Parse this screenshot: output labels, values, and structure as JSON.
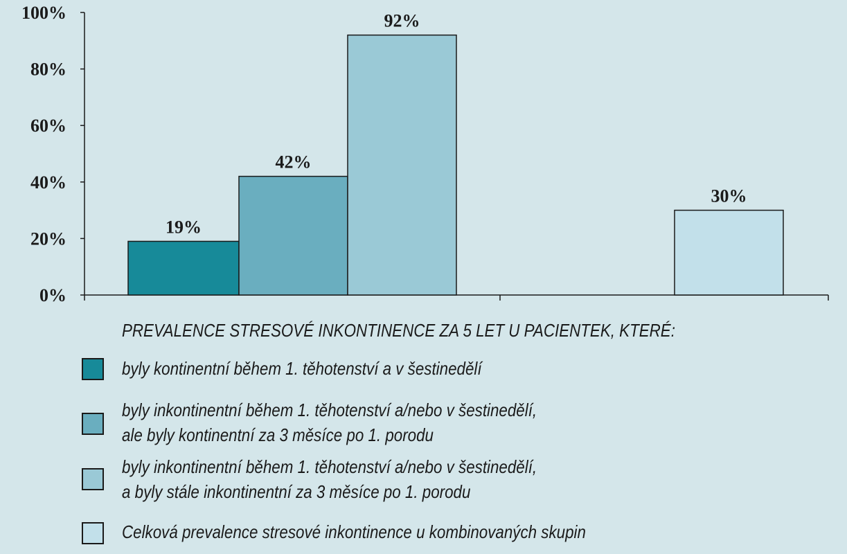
{
  "chart_data": {
    "type": "bar",
    "title": "",
    "xlabel": "",
    "ylabel": "",
    "ylim": [
      0,
      100
    ],
    "yticks": [
      "0%",
      "20%",
      "40%",
      "60%",
      "80%",
      "100%"
    ],
    "grid": false,
    "series": [
      {
        "label": "19%",
        "value": 19,
        "color": "#178a99"
      },
      {
        "label": "42%",
        "value": 42,
        "color": "#6aaebf"
      },
      {
        "label": "92%",
        "value": 92,
        "color": "#9ac9d6"
      },
      {
        "label": "30%",
        "value": 30,
        "color": "#c2e0ea"
      }
    ],
    "legend": {
      "title": "PREVALENCE STRESOVÉ INKONTINENCE ZA 5 LET U PACIENTEK, KTERÉ:",
      "placement": "bottom",
      "entries": [
        {
          "lines": [
            "byly kontinentní během 1. těhotenství a v šestinedělí"
          ],
          "color": "#178a99"
        },
        {
          "lines": [
            "byly inkontinentní během 1. těhotenství a/nebo v šestinedělí,",
            "ale byly kontinentní za 3 měsíce po 1. porodu"
          ],
          "color": "#6aaebf"
        },
        {
          "lines": [
            "byly inkontinentní během 1. těhotenství a/nebo v šestinedělí,",
            "a byly stále inkontinentní za 3 měsíce po 1. porodu"
          ],
          "color": "#9ac9d6"
        },
        {
          "lines": [
            "Celková prevalence stresové inkontinence u kombinovaných skupin"
          ],
          "color": "#c2e0ea"
        }
      ]
    }
  }
}
